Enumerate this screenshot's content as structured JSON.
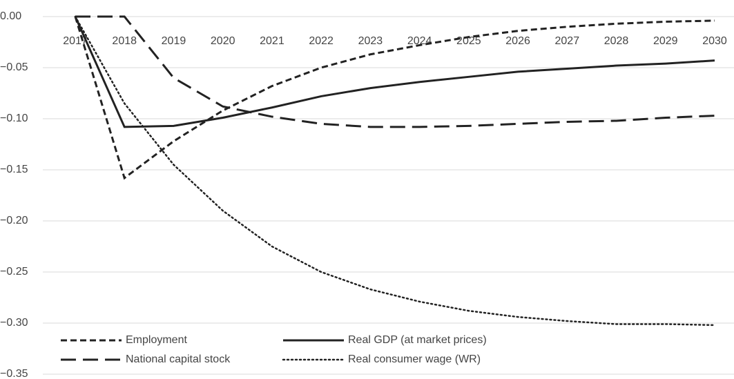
{
  "chart_data": {
    "type": "line",
    "categories": [
      "2017",
      "2018",
      "2019",
      "2020",
      "2021",
      "2022",
      "2023",
      "2024",
      "2025",
      "2026",
      "2027",
      "2028",
      "2029",
      "2030"
    ],
    "series": [
      {
        "name": "Employment",
        "color": "#222222",
        "style": "short-dash",
        "values": [
          0,
          -0.158,
          -0.122,
          -0.092,
          -0.068,
          -0.05,
          -0.037,
          -0.028,
          -0.02,
          -0.014,
          -0.01,
          -0.007,
          -0.005,
          -0.004
        ]
      },
      {
        "name": "Real GDP (at market prices)",
        "color": "#222222",
        "style": "solid",
        "values": [
          0,
          -0.108,
          -0.107,
          -0.099,
          -0.089,
          -0.078,
          -0.07,
          -0.064,
          -0.059,
          -0.054,
          -0.051,
          -0.048,
          -0.046,
          -0.043
        ]
      },
      {
        "name": "National capital stock",
        "color": "#222222",
        "style": "long-dash",
        "values": [
          0,
          0,
          -0.06,
          -0.088,
          -0.098,
          -0.105,
          -0.108,
          -0.108,
          -0.107,
          -0.105,
          -0.103,
          -0.102,
          -0.099,
          -0.097
        ]
      },
      {
        "name": "Real consumer wage (WR)",
        "color": "#222222",
        "style": "dotted",
        "values": [
          0,
          -0.085,
          -0.145,
          -0.19,
          -0.225,
          -0.25,
          -0.267,
          -0.279,
          -0.288,
          -0.294,
          -0.298,
          -0.301,
          -0.301,
          -0.302
        ]
      }
    ],
    "ylim": [
      -0.35,
      0
    ],
    "yticks": [
      {
        "value": 0,
        "label": "0.00"
      },
      {
        "value": -0.05,
        "label": "−0.05"
      },
      {
        "value": -0.1,
        "label": "−0.10"
      },
      {
        "value": -0.15,
        "label": "−0.15"
      },
      {
        "value": -0.2,
        "label": "−0.20"
      },
      {
        "value": -0.25,
        "label": "−0.25"
      },
      {
        "value": -0.3,
        "label": "−0.30"
      },
      {
        "value": -0.35,
        "label": "−0.35"
      }
    ],
    "grid": true,
    "legend": "lower left"
  }
}
